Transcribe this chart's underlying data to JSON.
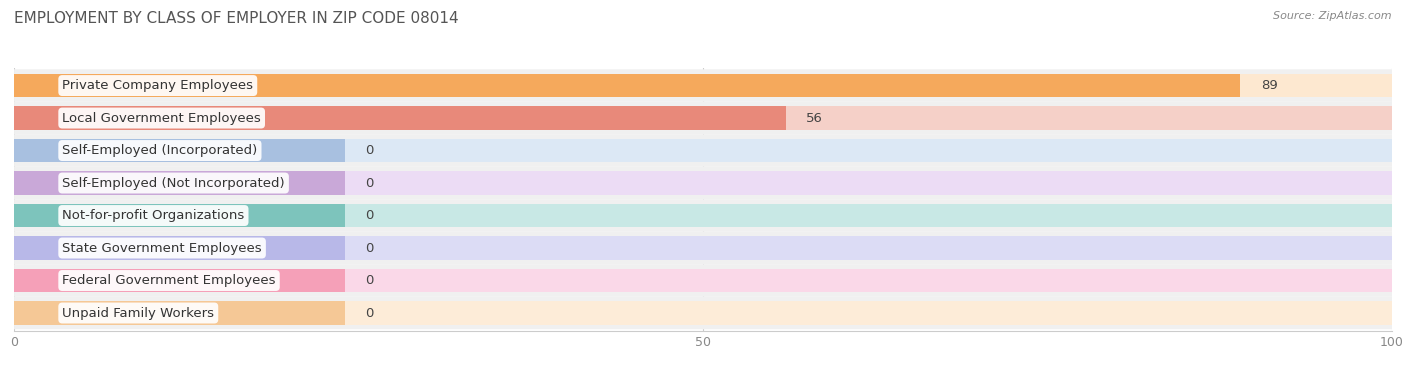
{
  "title": "EMPLOYMENT BY CLASS OF EMPLOYER IN ZIP CODE 08014",
  "source": "Source: ZipAtlas.com",
  "categories": [
    "Private Company Employees",
    "Local Government Employees",
    "Self-Employed (Incorporated)",
    "Self-Employed (Not Incorporated)",
    "Not-for-profit Organizations",
    "State Government Employees",
    "Federal Government Employees",
    "Unpaid Family Workers"
  ],
  "values": [
    89,
    56,
    0,
    0,
    0,
    0,
    0,
    0
  ],
  "bar_colors": [
    "#f5a95c",
    "#e8897a",
    "#a8c0e0",
    "#c9a8d8",
    "#7dc4bc",
    "#b8b8e8",
    "#f5a0b8",
    "#f5c896"
  ],
  "bar_bg_colors": [
    "#fde8d0",
    "#f5d0c8",
    "#dce8f5",
    "#ecdcf5",
    "#c8e8e5",
    "#dcdcf5",
    "#fad8e8",
    "#fdecd8"
  ],
  "xlim": [
    0,
    100
  ],
  "xticks": [
    0,
    50,
    100
  ],
  "background_color": "#ffffff",
  "row_bg_color": "#f0f0f0",
  "title_fontsize": 11,
  "label_fontsize": 9.5,
  "value_fontsize": 9.5
}
